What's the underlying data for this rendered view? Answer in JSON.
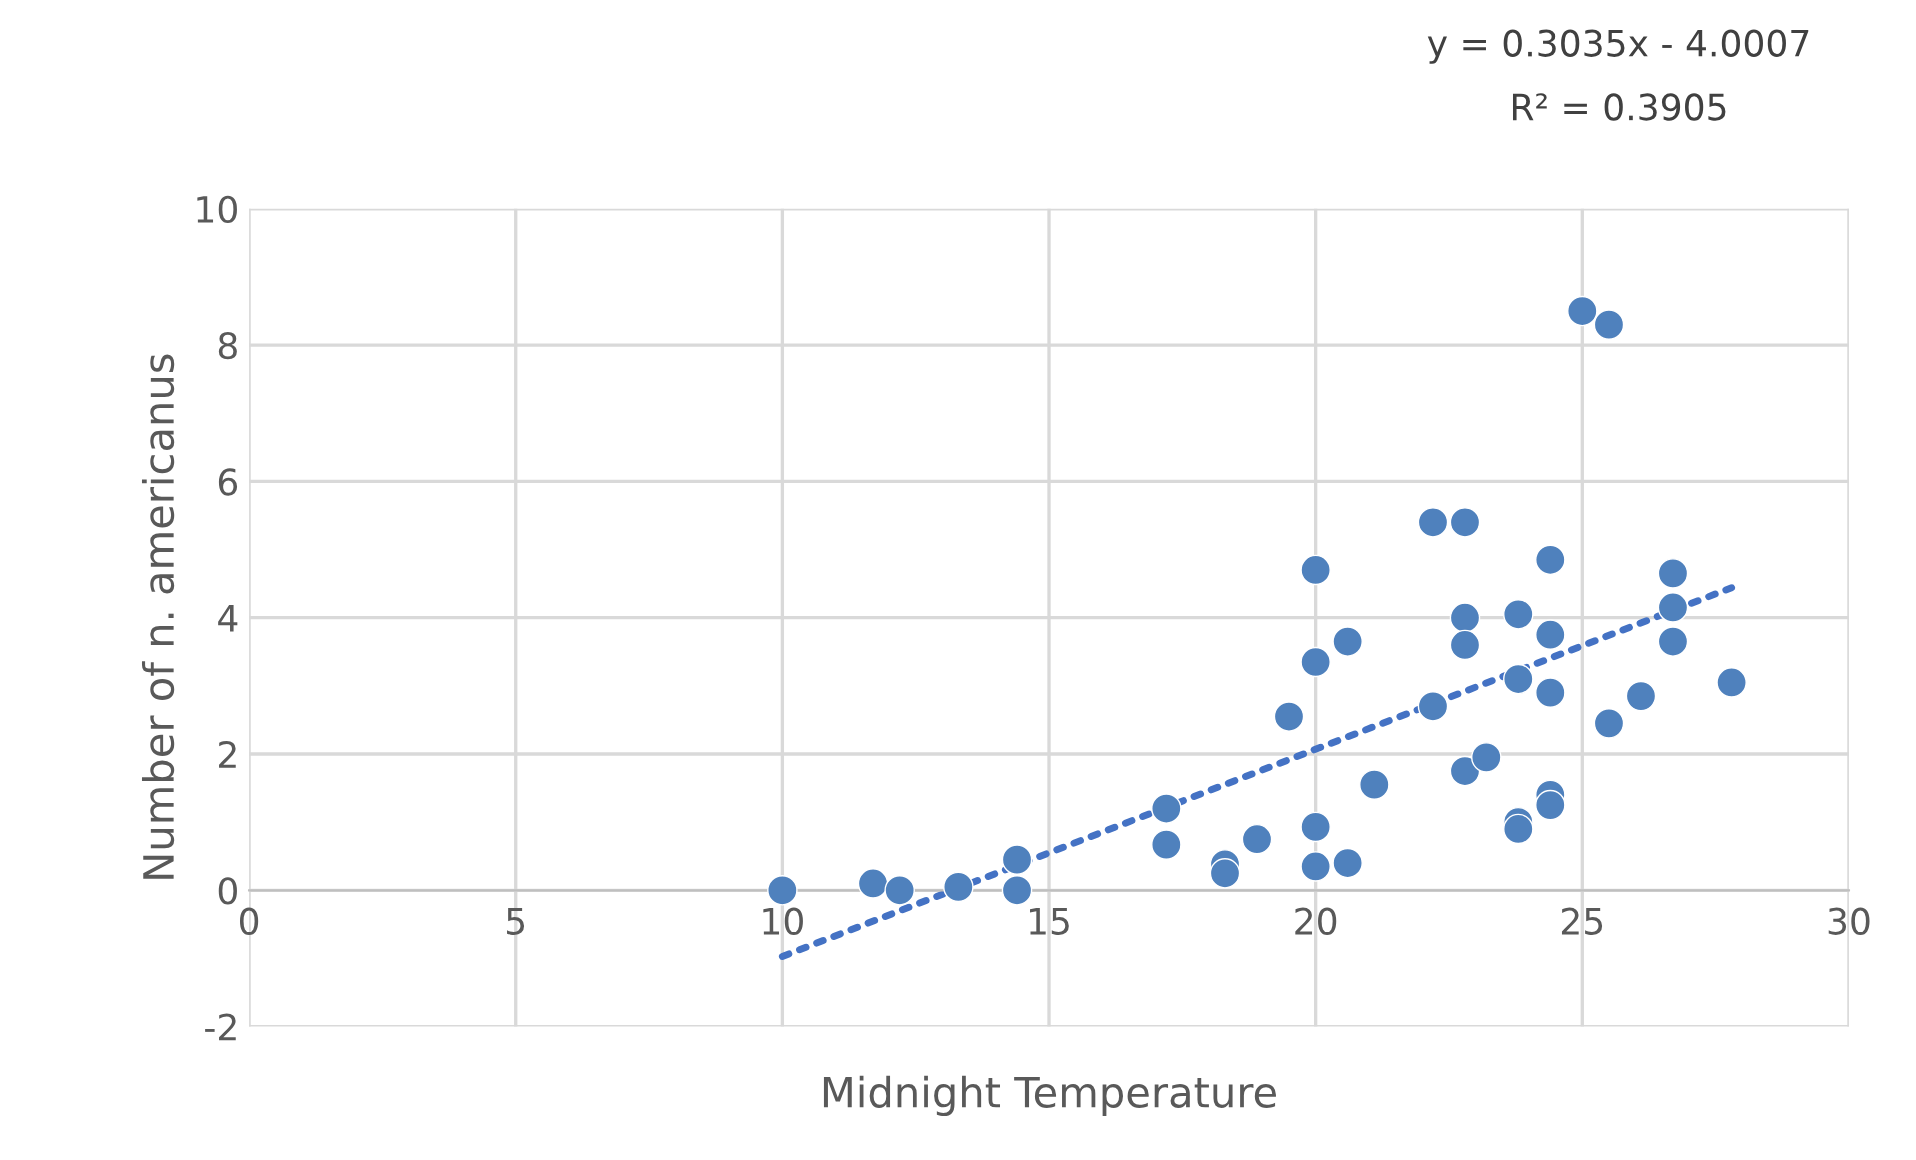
{
  "chart_data": {
    "type": "scatter",
    "xlabel": "Midnight Temperature",
    "ylabel": "Number of n. americanus",
    "xlim": [
      0,
      30
    ],
    "ylim": [
      -2,
      10
    ],
    "xticks": [
      0,
      5,
      10,
      15,
      20,
      25,
      30
    ],
    "yticks": [
      -2,
      0,
      2,
      4,
      6,
      8,
      10
    ],
    "grid": true,
    "legend": false,
    "marker": "circle",
    "annotations": [
      "y = 0.3035x - 4.0007",
      "R² = 0.3905"
    ],
    "series": [
      {
        "color": "#4f81bd",
        "x": [
          10.0,
          11.7,
          12.2,
          13.3,
          14.4,
          14.4,
          17.2,
          17.2,
          18.3,
          18.3,
          18.9,
          20.0,
          20.0,
          20.0,
          20.0,
          20.6,
          20.6,
          19.5,
          21.1,
          22.2,
          22.8,
          22.2,
          22.8,
          22.8,
          22.8,
          23.2,
          23.8,
          23.8,
          23.8,
          23.8,
          24.4,
          24.4,
          24.4,
          24.4,
          24.4,
          25.0,
          25.5,
          25.5,
          26.1,
          26.7,
          26.7,
          26.7,
          27.8
        ],
        "values": [
          0,
          0.1,
          0,
          0.05,
          0.45,
          0,
          1.2,
          0.67,
          0.38,
          0.25,
          0.75,
          4.7,
          3.35,
          0.93,
          0.35,
          3.65,
          0.4,
          2.55,
          1.55,
          5.4,
          5.4,
          2.7,
          4.0,
          3.6,
          1.75,
          1.95,
          4.05,
          3.1,
          1.0,
          0.9,
          4.85,
          3.75,
          2.9,
          1.4,
          1.25,
          8.5,
          8.3,
          2.45,
          2.85,
          4.65,
          4.15,
          3.65,
          3.05
        ]
      },
      {
        "type": "line",
        "color": "#4472c4",
        "line_style": "dotted",
        "marker": "none",
        "x": [
          10.0,
          27.8
        ],
        "values": [
          -0.97,
          4.44
        ]
      }
    ]
  }
}
